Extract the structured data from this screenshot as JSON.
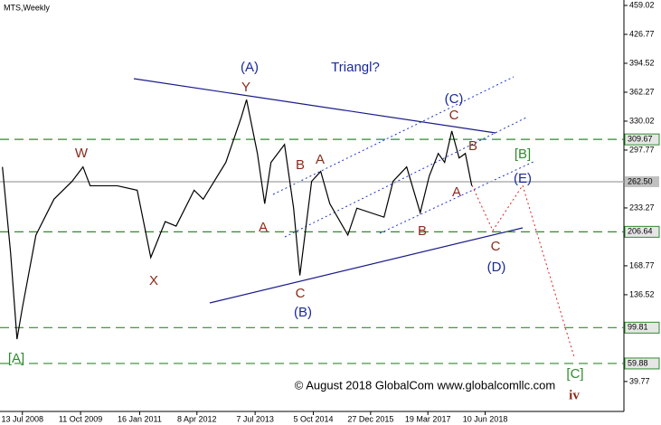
{
  "chart_data": {
    "type": "line",
    "title": "MTS,Weekly",
    "x": [
      "2008-02-08",
      "2008-04-12",
      "2008-06-01",
      "2008-07-13",
      "2008-10-27",
      "2009-03-17",
      "2009-08-06",
      "2009-10-30",
      "2009-12-25",
      "2010-07-25",
      "2010-12-28",
      "2011-04-13",
      "2011-08-04",
      "2011-10-28",
      "2012-03-17",
      "2012-05-27",
      "2012-11-20",
      "2013-03-20",
      "2013-05-01",
      "2013-07-25",
      "2013-09-20",
      "2013-11-08",
      "2014-02-22",
      "2014-05-04",
      "2014-06-22",
      "2014-09-22",
      "2014-12-02",
      "2015-02-11",
      "2015-07-02",
      "2015-09-11",
      "2016-04-10",
      "2016-06-20",
      "2016-10-04",
      "2017-01-18",
      "2017-03-30",
      "2017-06-08",
      "2017-07-28",
      "2017-09-22",
      "2017-11-18",
      "2018-01-06",
      "2018-02-25"
    ],
    "series": [
      {
        "name": "MTS",
        "color": "#000000",
        "values": [
          279,
          183,
          87,
          122,
          203,
          243,
          263,
          279,
          258,
          258,
          253,
          178,
          218,
          213,
          253,
          243,
          284,
          334,
          354,
          294,
          238,
          284,
          304,
          233,
          158,
          263,
          274,
          238,
          203,
          233,
          223,
          263,
          279,
          228,
          269,
          294,
          284,
          319,
          289,
          294,
          258
        ]
      }
    ],
    "xlim": [
      "2008-01-20",
      "2021-05-30"
    ],
    "xticks": [
      {
        "value": "2008-07-13",
        "label": "13 Jul 2008"
      },
      {
        "value": "2009-10-11",
        "label": "11 Oct 2009"
      },
      {
        "value": "2011-01-16",
        "label": "16 Jan 2011"
      },
      {
        "value": "2012-04-08",
        "label": "8 Apr 2012"
      },
      {
        "value": "2013-07-07",
        "label": "7 Jul 2013"
      },
      {
        "value": "2014-10-05",
        "label": "5 Oct 2014"
      },
      {
        "value": "2015-12-27",
        "label": "27 Dec 2015"
      },
      {
        "value": "2017-03-19",
        "label": "19 Mar 2017"
      },
      {
        "value": "2018-06-10",
        "label": "10 Jun 2018"
      }
    ],
    "ylim": [
      6.4,
      465.07
    ],
    "yticks": [
      459.02,
      426.77,
      394.52,
      362.27,
      330.02,
      297.77,
      233.27,
      168.77,
      136.52,
      39.77
    ],
    "levels": [
      309.67,
      {
        "value": 262.5,
        "label": "262.50"
      },
      206.64,
      99.81,
      59.88
    ],
    "annotations": [
      "(A)",
      "Triangl?",
      "Y",
      "(C)",
      "C",
      "W",
      "B",
      "A",
      "[B]",
      "B",
      "(E)",
      "A",
      "A",
      "B",
      "C",
      "(D)",
      "X",
      "C",
      "(B)",
      "[A]",
      "[C]",
      "iv"
    ],
    "copyright": "© August 2018 GlobalCom www.globalcomllc.com"
  }
}
